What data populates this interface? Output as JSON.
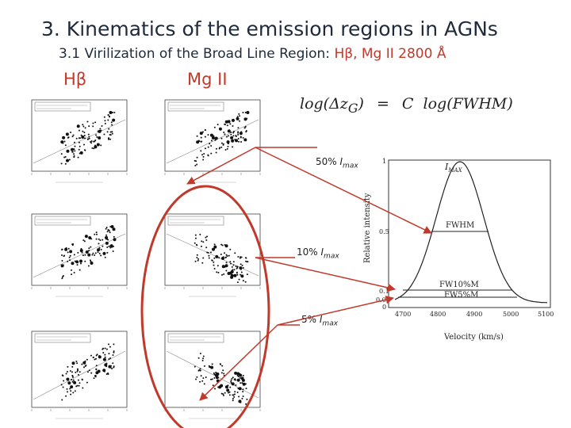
{
  "slide": {
    "title": "3. Kinematics of the emission regions in AGNs",
    "subtitle_prefix": "3.1 Virilization of the Broad Line Region: ",
    "subtitle_highlight": "Hβ, Mg II 2800 Å",
    "col_hbeta": "Hβ",
    "col_mgii": "Mg II"
  },
  "formula": {
    "lhs": "log(Δz",
    "lhs_sub": "G",
    "lhs_close": ")",
    "eq": "=",
    "rhs_c": "C",
    "rhs": "log(FWHM)"
  },
  "notes": [
    {
      "value": "50%",
      "unit": "I",
      "sub": "max"
    },
    {
      "value": "10%",
      "unit": "I",
      "sub": "max"
    },
    {
      "value": "5%",
      "unit": "I",
      "sub": "max"
    }
  ],
  "profile": {
    "ylabel": "Relative intensity",
    "xlabel": "Velocity (km/s)",
    "peak_label": "I",
    "peak_sub": "MAX",
    "labels": [
      "FWHM",
      "FW10%M",
      "FW5%M"
    ],
    "y_ticks": [
      "1",
      "0.5",
      "0.1",
      "0.05",
      "0"
    ],
    "x_ticks": [
      "4700",
      "4800",
      "4900",
      "5000",
      "5100"
    ]
  },
  "colors": {
    "accent": "#c0392b",
    "arrow": "#c0392b",
    "text": "#1f2a3a"
  }
}
